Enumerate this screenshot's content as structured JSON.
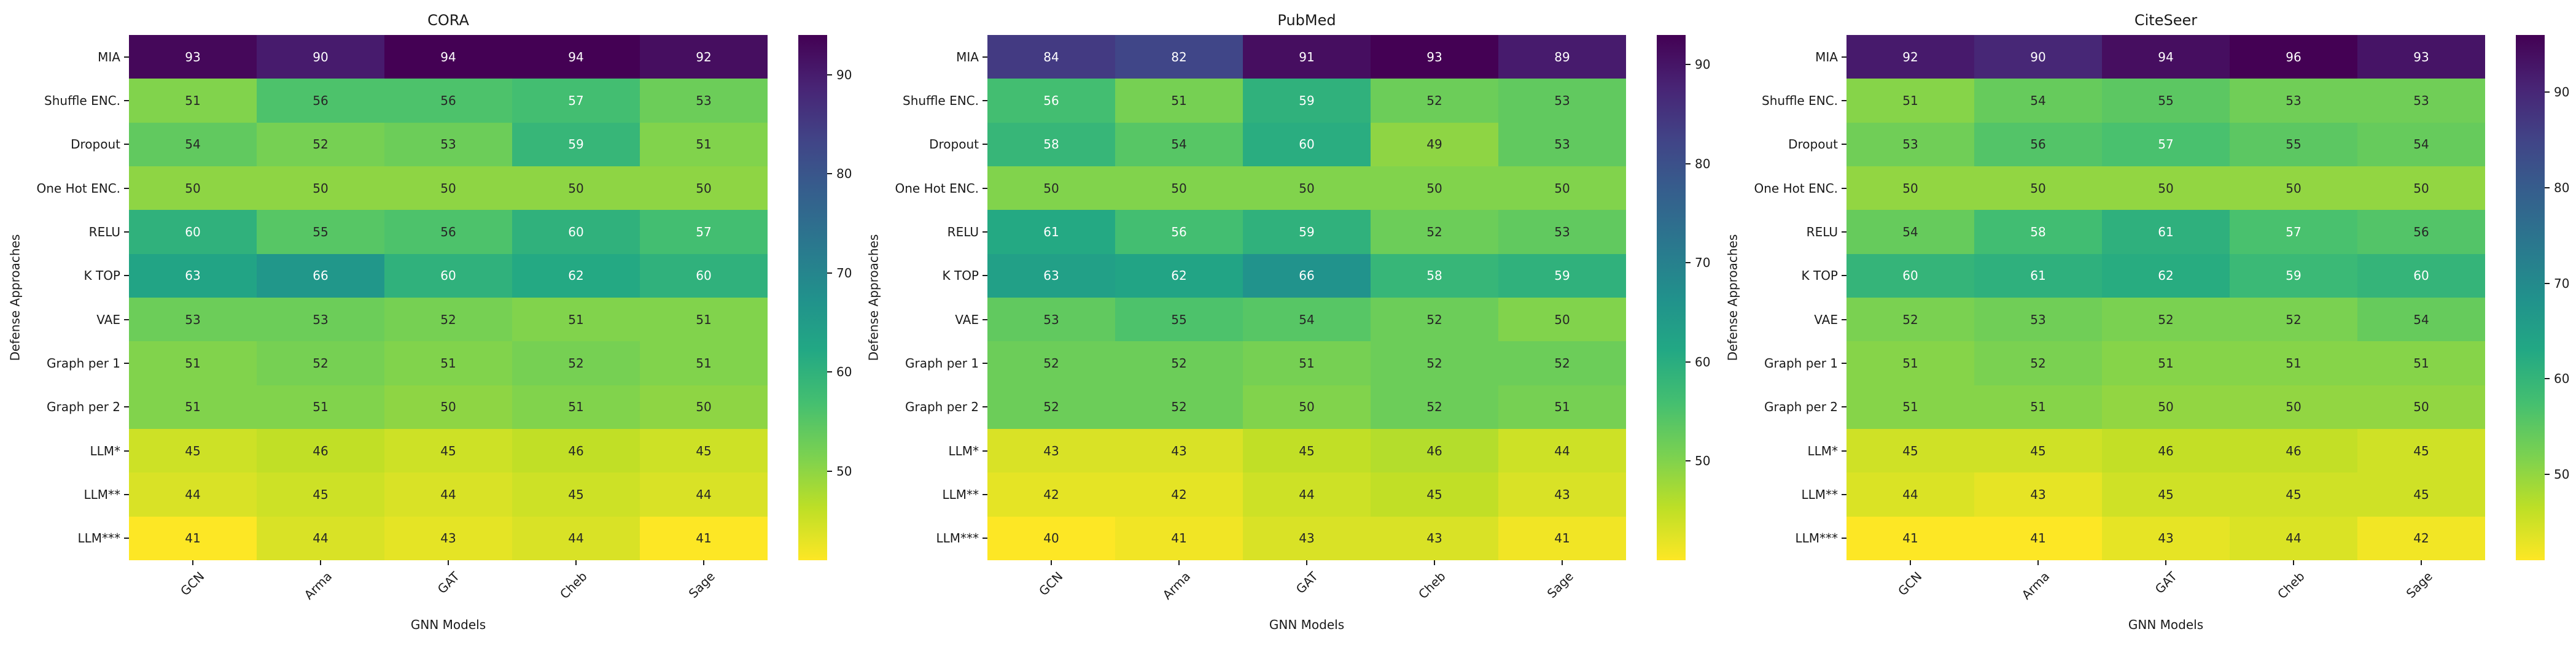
{
  "chart_data": [
    {
      "type": "heatmap",
      "title": "CORA",
      "xlabel": "GNN Models",
      "ylabel": "Defense Approaches",
      "x_categories": [
        "GCN",
        "Arma",
        "GAT",
        "Cheb",
        "Sage"
      ],
      "y_categories": [
        "MIA",
        "Shuffle ENC.",
        "Dropout",
        "One Hot ENC.",
        "RELU",
        "K TOP",
        "VAE",
        "Graph per 1",
        "Graph per 2",
        "LLM*",
        "LLM**",
        "LLM***"
      ],
      "values": [
        [
          93,
          90,
          94,
          94,
          92
        ],
        [
          51,
          56,
          56,
          57,
          53
        ],
        [
          54,
          52,
          53,
          59,
          51
        ],
        [
          50,
          50,
          50,
          50,
          50
        ],
        [
          60,
          55,
          56,
          60,
          57
        ],
        [
          63,
          66,
          60,
          62,
          60
        ],
        [
          53,
          53,
          52,
          51,
          51
        ],
        [
          51,
          52,
          51,
          52,
          51
        ],
        [
          51,
          51,
          50,
          51,
          50
        ],
        [
          45,
          46,
          45,
          46,
          45
        ],
        [
          44,
          45,
          44,
          45,
          44
        ],
        [
          41,
          44,
          43,
          44,
          41
        ]
      ],
      "colormap": "viridis_r",
      "colorbar_ticks": [
        50,
        60,
        70,
        80,
        90
      ],
      "legend_position": "right-colorbar",
      "grid": false
    },
    {
      "type": "heatmap",
      "title": "PubMed",
      "xlabel": "GNN Models",
      "ylabel": "Defense Approaches",
      "x_categories": [
        "GCN",
        "Arma",
        "GAT",
        "Cheb",
        "Sage"
      ],
      "y_categories": [
        "MIA",
        "Shuffle ENC.",
        "Dropout",
        "One Hot ENC.",
        "RELU",
        "K TOP",
        "VAE",
        "Graph per 1",
        "Graph per 2",
        "LLM*",
        "LLM**",
        "LLM***"
      ],
      "values": [
        [
          84,
          82,
          91,
          93,
          89
        ],
        [
          56,
          51,
          59,
          52,
          53
        ],
        [
          58,
          54,
          60,
          49,
          53
        ],
        [
          50,
          50,
          50,
          50,
          50
        ],
        [
          61,
          56,
          59,
          52,
          53
        ],
        [
          63,
          62,
          66,
          58,
          59
        ],
        [
          53,
          55,
          54,
          52,
          50
        ],
        [
          52,
          52,
          51,
          52,
          52
        ],
        [
          52,
          52,
          50,
          52,
          51
        ],
        [
          43,
          43,
          45,
          46,
          44
        ],
        [
          42,
          42,
          44,
          45,
          43
        ],
        [
          40,
          41,
          43,
          43,
          41
        ]
      ],
      "colormap": "viridis_r",
      "colorbar_ticks": [
        50,
        60,
        70,
        80,
        90
      ],
      "legend_position": "right-colorbar",
      "grid": false
    },
    {
      "type": "heatmap",
      "title": "CiteSeer",
      "xlabel": "GNN Models",
      "ylabel": "Defense Approaches",
      "x_categories": [
        "GCN",
        "Arma",
        "GAT",
        "Cheb",
        "Sage"
      ],
      "y_categories": [
        "MIA",
        "Shuffle ENC.",
        "Dropout",
        "One Hot ENC.",
        "RELU",
        "K TOP",
        "VAE",
        "Graph per 1",
        "Graph per 2",
        "LLM*",
        "LLM**",
        "LLM***"
      ],
      "values": [
        [
          92,
          90,
          94,
          96,
          93
        ],
        [
          51,
          54,
          55,
          53,
          53
        ],
        [
          53,
          56,
          57,
          55,
          54
        ],
        [
          50,
          50,
          50,
          50,
          50
        ],
        [
          54,
          58,
          61,
          57,
          56
        ],
        [
          60,
          61,
          62,
          59,
          60
        ],
        [
          52,
          53,
          52,
          52,
          54
        ],
        [
          51,
          52,
          51,
          51,
          51
        ],
        [
          51,
          51,
          50,
          50,
          50
        ],
        [
          45,
          45,
          46,
          46,
          45
        ],
        [
          44,
          43,
          45,
          45,
          45
        ],
        [
          41,
          41,
          43,
          44,
          42
        ]
      ],
      "colormap": "viridis_r",
      "colorbar_ticks": [
        50,
        60,
        70,
        80,
        90
      ],
      "legend_position": "right-colorbar",
      "grid": false
    }
  ],
  "colors": {
    "viridis_low": "#fde725",
    "viridis_high": "#440154",
    "dark_text": "#262626",
    "light_text": "#ffffff",
    "background": "#ffffff"
  }
}
